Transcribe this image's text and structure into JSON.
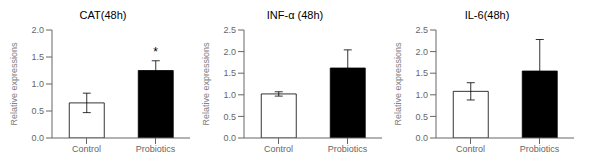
{
  "chart_data": [
    {
      "type": "bar",
      "title": "CAT(48h)",
      "categories": [
        "Control",
        "Probiotics"
      ],
      "values": [
        0.65,
        1.25
      ],
      "errors": [
        0.18,
        0.18
      ],
      "colors": [
        "white",
        "black"
      ],
      "ylim": [
        0,
        2.0
      ],
      "yticks": [
        {
          "value": 0,
          "label": "0.0"
        },
        0.5,
        {
          "value": 1,
          "label": "1.0"
        },
        1.5,
        {
          "value": 2,
          "label": "2.0"
        }
      ],
      "ylabel": "Relative expressions",
      "annotations": [
        {
          "text": "*",
          "category": "Probiotics"
        }
      ]
    },
    {
      "type": "bar",
      "title": "INF-α (48h)",
      "categories": [
        "Control",
        "Probiotics"
      ],
      "values": [
        1.02,
        1.62
      ],
      "errors": [
        0.05,
        0.42
      ],
      "colors": [
        "white",
        "black"
      ],
      "ylim": [
        0,
        2.5
      ],
      "yticks": [
        {
          "value": 0,
          "label": "0.0"
        },
        0.5,
        {
          "value": 1,
          "label": "1.0"
        },
        1.5,
        {
          "value": 2,
          "label": "2.0"
        },
        2.5
      ],
      "ylabel": "Relative expressions"
    },
    {
      "type": "bar",
      "title": "IL-6(48h)",
      "categories": [
        "Control",
        "Probiotics"
      ],
      "values": [
        1.08,
        1.55
      ],
      "errors": [
        0.2,
        0.73
      ],
      "colors": [
        "white",
        "black"
      ],
      "ylim": [
        0,
        2.5
      ],
      "yticks": [
        {
          "value": 0,
          "label": "0.0"
        },
        0.5,
        {
          "value": 1,
          "label": "1.0"
        },
        1.5,
        {
          "value": 2,
          "label": "2.0"
        },
        2.5
      ],
      "ylabel": "Relative expressions"
    }
  ]
}
